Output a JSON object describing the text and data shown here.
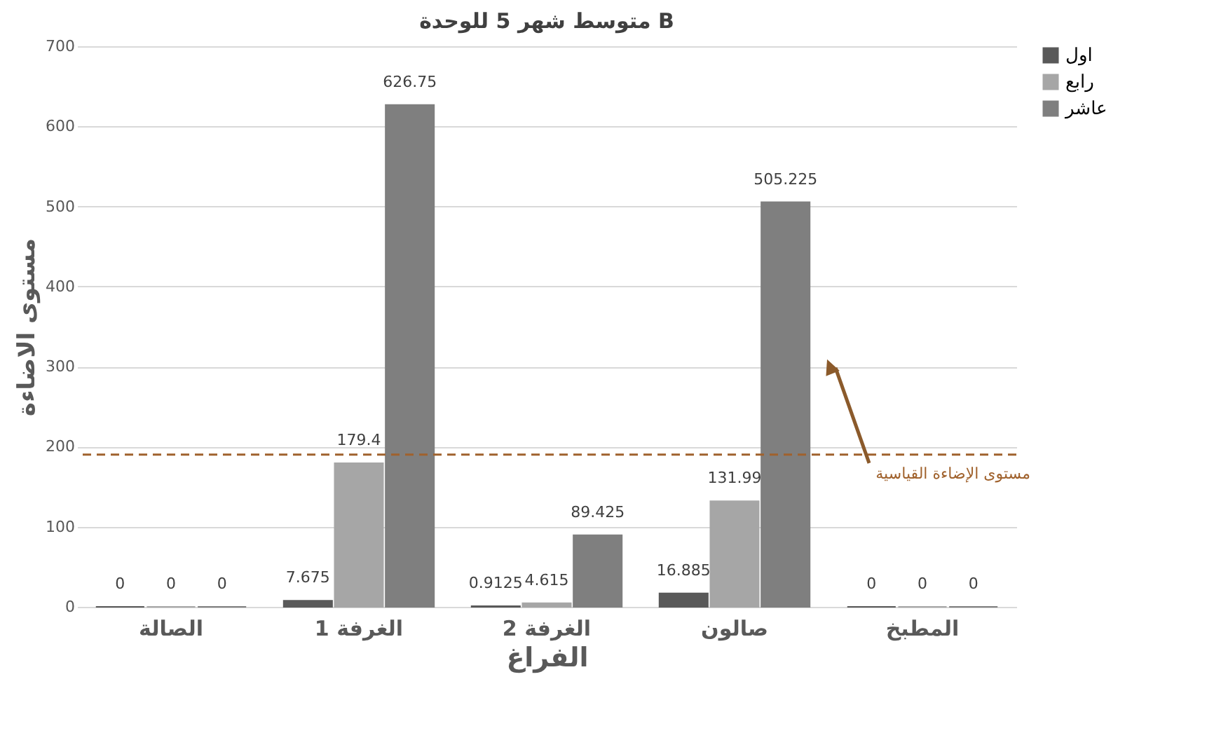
{
  "chart_data": {
    "type": "bar",
    "title": "متوسط شهر 5 للوحدة B",
    "xlabel": "الفراغ",
    "ylabel": "مستوى الاضاءة",
    "categories": [
      "الصالة",
      "الغرفة 1",
      "الغرفة 2",
      "صالون",
      "المطبخ"
    ],
    "series": [
      {
        "name": "اول",
        "color": "#595959",
        "values": [
          0,
          7.675,
          0.9125,
          16.885,
          0
        ]
      },
      {
        "name": "رابع",
        "color": "#a6a6a6",
        "values": [
          0,
          179.4,
          4.615,
          131.99,
          0
        ]
      },
      {
        "name": "عاشر",
        "color": "#7f7f7f",
        "values": [
          0,
          626.75,
          89.425,
          505.225,
          0
        ]
      }
    ],
    "ylim": [
      0,
      700
    ],
    "yticks": [
      0,
      100,
      200,
      300,
      400,
      500,
      600,
      700
    ],
    "grid": "y",
    "legend": "right",
    "data_labels": true,
    "ref_lines": [
      {
        "axis": "y",
        "value": 190,
        "label": "مستوى الإضاءة القياسية",
        "color": "#a0622d",
        "line_style": "dashed"
      }
    ]
  }
}
